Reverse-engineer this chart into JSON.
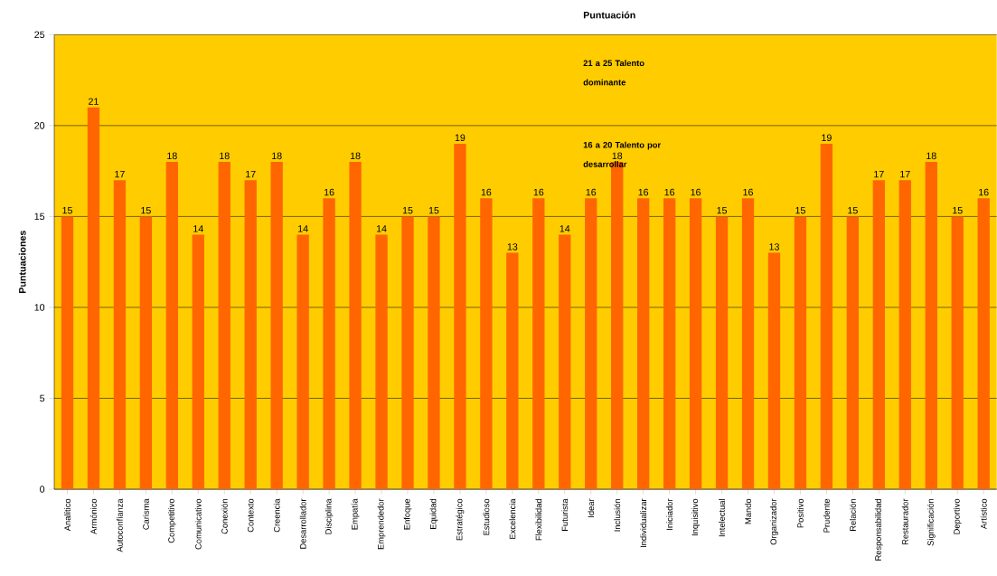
{
  "chart_data": {
    "type": "bar",
    "ylabel": "Puntuaciones",
    "categories": [
      "Analítico",
      "Armónico",
      "Autoconfianza",
      "Carisma",
      "Competitivo",
      "Comunicativo",
      "Conexión",
      "Contexto",
      "Creencia",
      "Desarrollador",
      "Disciplina",
      "Empatía",
      "Emprendedor",
      "Enfoque",
      "Equidad",
      "Estratégico",
      "Estudioso",
      "Excelencia",
      "Flexibilidad",
      "Futurista",
      "Idear",
      "Inclusión",
      "Individualizar",
      "Iniciador",
      "Inquisitivo",
      "Intelectual",
      "Mando",
      "Organizador",
      "Positivo",
      "Prudente",
      "Relación",
      "Responsabilidad",
      "Restaurador",
      "Significación",
      "Deportivo",
      "Artístico"
    ],
    "values": [
      15,
      21,
      17,
      15,
      18,
      14,
      18,
      17,
      18,
      14,
      16,
      18,
      14,
      15,
      15,
      19,
      16,
      13,
      16,
      14,
      16,
      18,
      16,
      16,
      16,
      15,
      16,
      13,
      15,
      19,
      15,
      17,
      17,
      18,
      15,
      16
    ],
    "color": "#ff6600",
    "data_labels": true,
    "grid": "y",
    "ylim": [
      0,
      25
    ],
    "yticks": [
      0,
      5,
      10,
      15,
      20,
      25
    ],
    "annotations": [
      "Puntuación",
      "21 a 25  Talento dominante",
      "16 a 20  Talento por desarrollar"
    ]
  }
}
